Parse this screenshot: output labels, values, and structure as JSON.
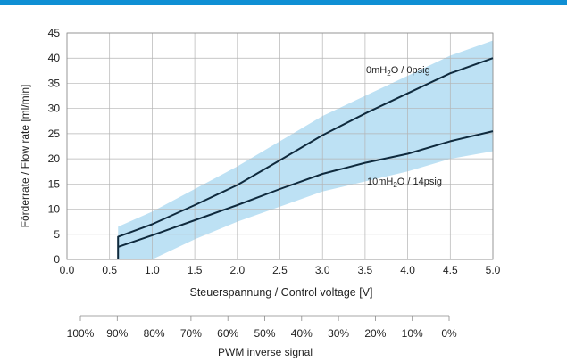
{
  "chart_data": {
    "type": "line",
    "xlabel": "Steuerspannung / Control voltage [V]",
    "ylabel": "Förderrate / Flow rate [ml/min]",
    "xlim": [
      0,
      5
    ],
    "ylim": [
      0,
      45
    ],
    "xticks": [
      "0.0",
      "0.5",
      "1.0",
      "1.5",
      "2.0",
      "2.5",
      "3.0",
      "3.5",
      "4.0",
      "4.5",
      "5.0"
    ],
    "yticks": [
      "0",
      "5",
      "10",
      "15",
      "20",
      "25",
      "30",
      "35",
      "40",
      "45"
    ],
    "grid": true,
    "series": [
      {
        "name": "0mH2O / 0psig",
        "x": [
          0.6,
          0.6,
          1.0,
          1.5,
          2.0,
          2.5,
          3.0,
          3.5,
          4.0,
          4.5,
          5.0
        ],
        "y": [
          0,
          4.5,
          7.0,
          10.8,
          14.8,
          19.7,
          24.7,
          29.0,
          33.0,
          37.0,
          40.0
        ]
      },
      {
        "name": "10mH2O / 14psig",
        "x": [
          0.6,
          1.0,
          1.5,
          2.0,
          2.5,
          3.0,
          3.5,
          4.0,
          4.5,
          5.0
        ],
        "y": [
          2.5,
          4.8,
          7.8,
          10.8,
          14.0,
          17.0,
          19.2,
          21.0,
          23.5,
          25.5
        ]
      }
    ],
    "tolerance_band": {
      "x": [
        0.6,
        1.0,
        1.5,
        2.0,
        2.5,
        3.0,
        3.5,
        4.0,
        4.5,
        5.0
      ],
      "upper": [
        6.5,
        9.5,
        14.0,
        18.5,
        23.5,
        28.5,
        32.5,
        36.5,
        40.5,
        43.5
      ],
      "lower": [
        0.0,
        0.0,
        4.0,
        7.5,
        10.5,
        13.5,
        15.5,
        17.5,
        20.0,
        21.5
      ]
    },
    "annotations": [
      {
        "parts": [
          "0mH",
          "2",
          "O / 0psig"
        ]
      },
      {
        "parts": [
          "10mH",
          "2",
          "O / 14psig"
        ]
      }
    ],
    "secondary_axis": {
      "label": "PWM inverse signal",
      "ticks": [
        "100%",
        "90%",
        "80%",
        "70%",
        "60%",
        "50%",
        "40%",
        "30%",
        "20%",
        "10%",
        "0%"
      ]
    }
  },
  "colors": {
    "top_bar": "#0f8fd4",
    "band": "#bde1f4",
    "line": "#0f2a3d",
    "grid": "#b4b4b4"
  }
}
